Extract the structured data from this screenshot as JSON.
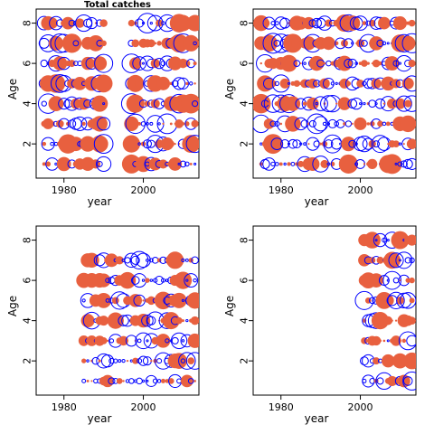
{
  "colors": {
    "positive": "#e8603f",
    "negative": "#0000ff",
    "frame": "#000000"
  },
  "chart_data": [
    {
      "type": "scatter",
      "title": "Total catches",
      "xlabel": "year",
      "ylabel": "Age",
      "xlim": [
        1973,
        2014
      ],
      "ylim": [
        0.3,
        8.7
      ],
      "x_ticks": [
        1980,
        2000
      ],
      "y_ticks": [
        2,
        4,
        6,
        8
      ],
      "ages": [
        1,
        2,
        3,
        4,
        5,
        6,
        7,
        8
      ],
      "years": [
        1975,
        2013
      ],
      "seed": 11,
      "size_max": 10,
      "pos_bias": 0.5,
      "note_gap": [
        1990,
        1997
      ]
    },
    {
      "type": "scatter",
      "title": "",
      "xlabel": "year",
      "ylabel": "Age",
      "xlim": [
        1973,
        2014
      ],
      "ylim": [
        0.3,
        8.7
      ],
      "x_ticks": [
        1980,
        2000
      ],
      "y_ticks": [
        2,
        4,
        6,
        8
      ],
      "ages": [
        1,
        2,
        3,
        4,
        5,
        6,
        7,
        8
      ],
      "years": [
        1975,
        2013
      ],
      "seed": 23,
      "size_max": 10,
      "pos_bias": 0.5
    },
    {
      "type": "scatter",
      "title": "",
      "xlabel": "year",
      "ylabel": "Age",
      "xlim": [
        1973,
        2014
      ],
      "ylim": [
        0.3,
        8.7
      ],
      "x_ticks": [
        1980,
        2000
      ],
      "y_ticks": [
        2,
        4,
        6,
        8
      ],
      "ages": [
        1,
        2,
        3,
        4,
        5,
        6,
        7
      ],
      "years": [
        1985,
        2013
      ],
      "seed": 37,
      "size_max": 9,
      "pos_bias": 0.5
    },
    {
      "type": "scatter",
      "title": "",
      "xlabel": "year",
      "ylabel": "Age",
      "xlim": [
        1973,
        2014
      ],
      "ylim": [
        0.3,
        8.7
      ],
      "x_ticks": [
        1980,
        2000
      ],
      "y_ticks": [
        2,
        4,
        6,
        8
      ],
      "ages": [
        1,
        2,
        3,
        4,
        5,
        6,
        7,
        8
      ],
      "years": [
        2001,
        2013
      ],
      "seed": 51,
      "size_max": 9,
      "pos_bias": 0.5
    }
  ]
}
